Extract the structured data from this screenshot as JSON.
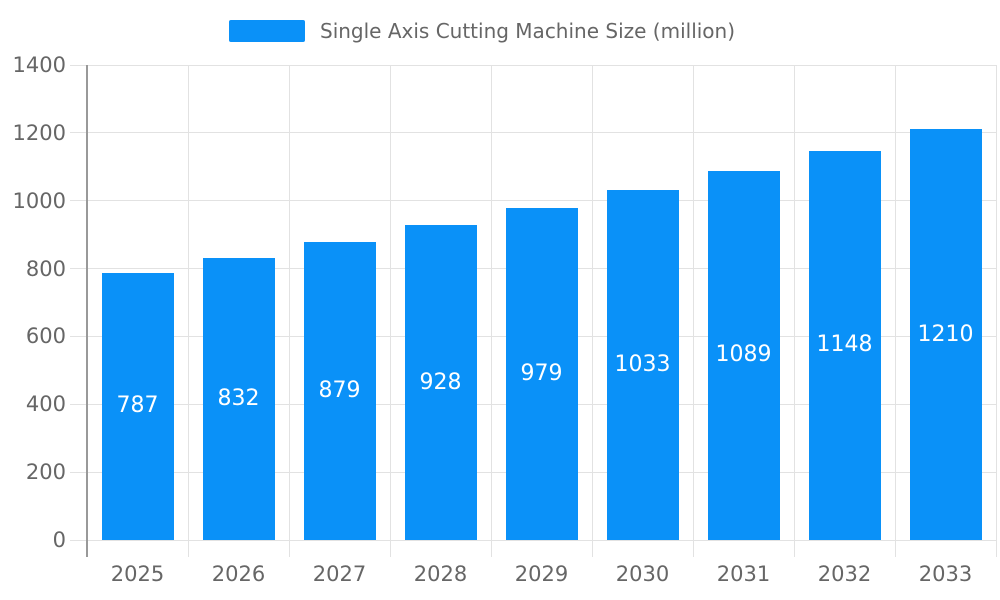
{
  "chart_data": {
    "type": "bar",
    "title": "",
    "legend": "Single Axis Cutting Machine Size (million)",
    "legend_position": "top",
    "categories": [
      "2025",
      "2026",
      "2027",
      "2028",
      "2029",
      "2030",
      "2031",
      "2032",
      "2033"
    ],
    "values": [
      787,
      832,
      879,
      928,
      979,
      1033,
      1089,
      1148,
      1210
    ],
    "value_labels_shown": true,
    "xlabel": "",
    "ylabel": "",
    "ylim": [
      0,
      1400
    ],
    "yticks": [
      0,
      200,
      400,
      600,
      800,
      1000,
      1200,
      1400
    ],
    "grid": true,
    "colors": {
      "bar": "#0a91f8",
      "bar_label": "#ffffff",
      "grid_line": "#e2e2e2",
      "axis_line": "#999999",
      "tick_text": "#666666",
      "legend_text": "#666666",
      "background": "#ffffff"
    }
  }
}
